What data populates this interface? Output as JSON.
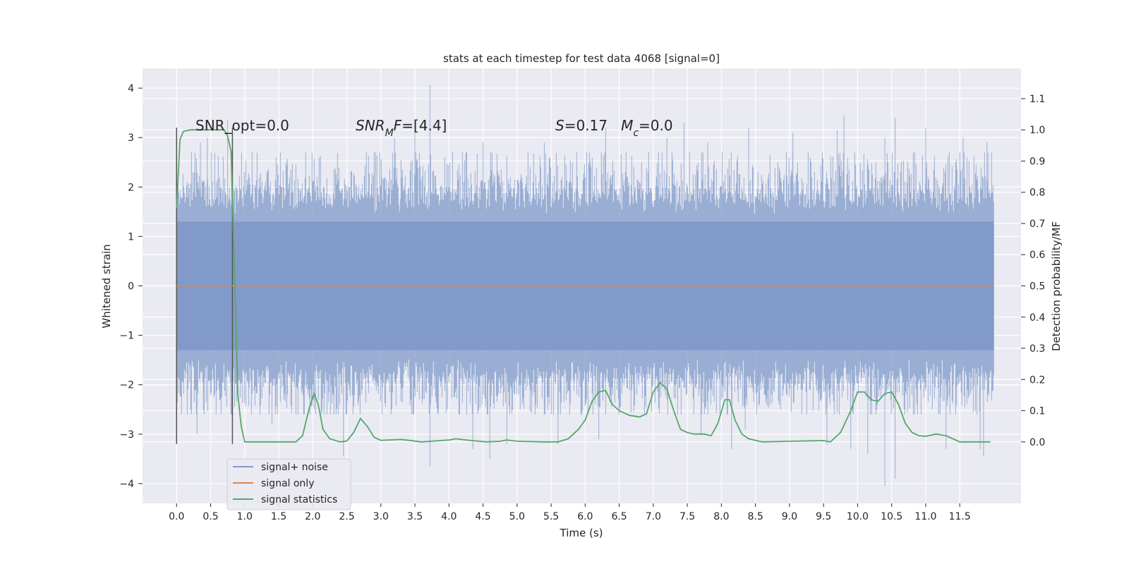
{
  "chart_data": {
    "type": "line",
    "title": "stats at each timestep for test data 4068 [signal=0]",
    "xlabel": "Time (s)",
    "ylabel_left": "Whitened strain",
    "ylabel_right": "Detection probability/MF",
    "xlim": [
      -0.5,
      12.4
    ],
    "ylim_left": [
      -4.4,
      4.4
    ],
    "ylim_right": [
      -0.197,
      1.197
    ],
    "x_ticks": [
      0.0,
      0.5,
      1.0,
      1.5,
      2.0,
      2.5,
      3.0,
      3.5,
      4.0,
      4.5,
      5.0,
      5.5,
      6.0,
      6.5,
      7.0,
      7.5,
      8.0,
      8.5,
      9.0,
      9.5,
      10.0,
      10.5,
      11.0,
      11.5
    ],
    "x_tick_labels": [
      "0.0",
      "0.5",
      "1.0",
      "1.5",
      "2.0",
      "2.5",
      "3.0",
      "3.5",
      "4.0",
      "4.5",
      "5.0",
      "5.5",
      "6.0",
      "6.5",
      "7.0",
      "7.5",
      "8.0",
      "8.5",
      "9.0",
      "9.5",
      "10.0",
      "10.5",
      "11.0",
      "11.5"
    ],
    "left_ticks": [
      -4,
      -3,
      -2,
      -1,
      0,
      1,
      2,
      3,
      4
    ],
    "left_tick_labels": [
      "−4",
      "−3",
      "−2",
      "−1",
      "0",
      "1",
      "2",
      "3",
      "4"
    ],
    "right_ticks": [
      0.0,
      0.1,
      0.2,
      0.3,
      0.4,
      0.5,
      0.6,
      0.7,
      0.8,
      0.9,
      1.0,
      1.1
    ],
    "right_tick_labels": [
      "0.0",
      "0.1",
      "0.2",
      "0.3",
      "0.4",
      "0.5",
      "0.6",
      "0.7",
      "0.8",
      "0.9",
      "1.0",
      "1.1"
    ],
    "grid": true,
    "legend_placement": "lower-left",
    "series": [
      {
        "name": "signal+ noise",
        "axis": "left",
        "color": "#7f99c8",
        "time_range": [
          0.0,
          12.0
        ],
        "typical_envelope": [
          -1.3,
          1.3
        ],
        "positive_peaks": [
          [
            0.35,
            2.9
          ],
          [
            0.45,
            3.0
          ],
          [
            0.75,
            3.35
          ],
          [
            3.2,
            3.0
          ],
          [
            3.5,
            3.1
          ],
          [
            3.72,
            4.07
          ],
          [
            4.5,
            2.9
          ],
          [
            5.4,
            2.9
          ],
          [
            6.3,
            3.2
          ],
          [
            7.2,
            3.0
          ],
          [
            7.45,
            3.3
          ],
          [
            7.8,
            2.9
          ],
          [
            8.4,
            3.2
          ],
          [
            9.05,
            3.1
          ],
          [
            9.7,
            3.15
          ],
          [
            9.8,
            3.45
          ],
          [
            10.4,
            3.0
          ],
          [
            10.55,
            3.4
          ],
          [
            11.0,
            3.2
          ],
          [
            11.55,
            3.0
          ],
          [
            11.9,
            2.9
          ]
        ],
        "negative_peaks": [
          [
            0.3,
            -3.0
          ],
          [
            1.4,
            -2.8
          ],
          [
            2.45,
            -3.45
          ],
          [
            3.72,
            -3.65
          ],
          [
            4.35,
            -3.3
          ],
          [
            4.6,
            -3.5
          ],
          [
            4.85,
            -3.2
          ],
          [
            5.6,
            -3.2
          ],
          [
            6.2,
            -3.1
          ],
          [
            7.7,
            -3.0
          ],
          [
            8.15,
            -3.3
          ],
          [
            8.35,
            -2.9
          ],
          [
            9.55,
            -3.2
          ],
          [
            9.9,
            -3.3
          ],
          [
            10.15,
            -3.4
          ],
          [
            10.4,
            -4.05
          ],
          [
            10.55,
            -3.9
          ],
          [
            11.3,
            -3.3
          ],
          [
            11.8,
            -3.3
          ],
          [
            11.85,
            -3.45
          ]
        ]
      },
      {
        "name": "signal only",
        "axis": "left",
        "color": "#dd8452",
        "x": [
          0.0,
          12.0
        ],
        "y": [
          0.0,
          0.0
        ]
      },
      {
        "name": "signal statistics",
        "axis": "right",
        "color": "#55a868",
        "x": [
          0.0,
          0.05,
          0.1,
          0.2,
          0.3,
          0.4,
          0.5,
          0.6,
          0.7,
          0.75,
          0.8,
          0.85,
          0.9,
          0.95,
          1.0,
          1.1,
          1.3,
          1.5,
          1.75,
          1.85,
          1.95,
          2.02,
          2.08,
          2.15,
          2.25,
          2.4,
          2.5,
          2.6,
          2.7,
          2.8,
          2.9,
          3.0,
          3.3,
          3.6,
          4.0,
          4.1,
          4.3,
          4.55,
          4.75,
          4.85,
          5.0,
          5.4,
          5.6,
          5.75,
          5.9,
          6.0,
          6.1,
          6.2,
          6.3,
          6.4,
          6.5,
          6.65,
          6.8,
          6.9,
          7.0,
          7.1,
          7.2,
          7.3,
          7.4,
          7.5,
          7.6,
          7.75,
          7.85,
          7.95,
          8.05,
          8.12,
          8.2,
          8.3,
          8.4,
          8.6,
          9.0,
          9.5,
          9.6,
          9.75,
          9.9,
          10.0,
          10.1,
          10.2,
          10.3,
          10.4,
          10.5,
          10.6,
          10.7,
          10.8,
          10.9,
          11.0,
          11.15,
          11.3,
          11.5,
          11.95
        ],
        "y": [
          0.75,
          0.97,
          0.995,
          1.0,
          1.0,
          1.0,
          1.0,
          1.0,
          1.0,
          0.98,
          0.93,
          0.55,
          0.15,
          0.05,
          0.0,
          0.0,
          0.0,
          0.0,
          0.0,
          0.02,
          0.11,
          0.155,
          0.12,
          0.04,
          0.01,
          0.0,
          0.003,
          0.03,
          0.075,
          0.05,
          0.015,
          0.005,
          0.008,
          0.0,
          0.006,
          0.01,
          0.005,
          0.0,
          0.002,
          0.006,
          0.002,
          0.0,
          0.0,
          0.01,
          0.04,
          0.07,
          0.13,
          0.16,
          0.165,
          0.12,
          0.1,
          0.085,
          0.08,
          0.09,
          0.16,
          0.19,
          0.17,
          0.1,
          0.04,
          0.03,
          0.025,
          0.025,
          0.02,
          0.06,
          0.135,
          0.135,
          0.07,
          0.025,
          0.01,
          0.0,
          0.002,
          0.004,
          0.0,
          0.03,
          0.1,
          0.16,
          0.16,
          0.135,
          0.13,
          0.155,
          0.16,
          0.12,
          0.06,
          0.03,
          0.02,
          0.018,
          0.025,
          0.02,
          0.0,
          0.0
        ]
      }
    ],
    "vertical_markers": [
      {
        "x": 0.0,
        "y_range_left": [
          -3.2,
          3.2
        ],
        "color": "#555555"
      },
      {
        "x": 0.82,
        "y_range_left": [
          -3.2,
          3.2
        ],
        "color": "#555555"
      }
    ],
    "annotations": [
      {
        "id": "snr-opt",
        "text": "SNR_opt=0.0"
      },
      {
        "id": "snr-mf",
        "text": "SNR_M F=[4.4]"
      },
      {
        "id": "s-mc",
        "text": "S=0.17   M_c=0.0"
      }
    ],
    "legend": [
      {
        "label": "signal+ noise",
        "color": "#7f99c8"
      },
      {
        "label": "signal only",
        "color": "#dd8452"
      },
      {
        "label": "signal statistics",
        "color": "#55a868"
      }
    ],
    "background_color": "#eaeaf2",
    "grid_color": "#ffffff"
  }
}
